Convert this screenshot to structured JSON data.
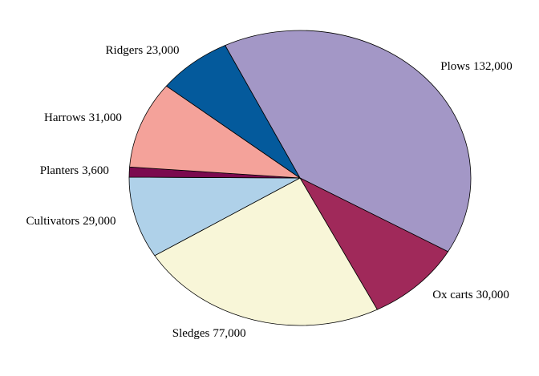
{
  "chart_data": {
    "type": "pie",
    "categories": [
      "Plows",
      "Ox carts",
      "Sledges",
      "Cultivators",
      "Planters",
      "Harrows",
      "Ridgers"
    ],
    "values": [
      132000,
      30000,
      77000,
      29000,
      3600,
      31000,
      23000
    ],
    "value_labels": [
      "132,000",
      "30,000",
      "77,000",
      "29,000",
      "3,600",
      "31,000",
      "23,000"
    ],
    "colors": [
      "#a397c6",
      "#a0295a",
      "#f8f6d8",
      "#afd1e9",
      "#7b0a4f",
      "#f4a29a",
      "#045a9c"
    ]
  }
}
